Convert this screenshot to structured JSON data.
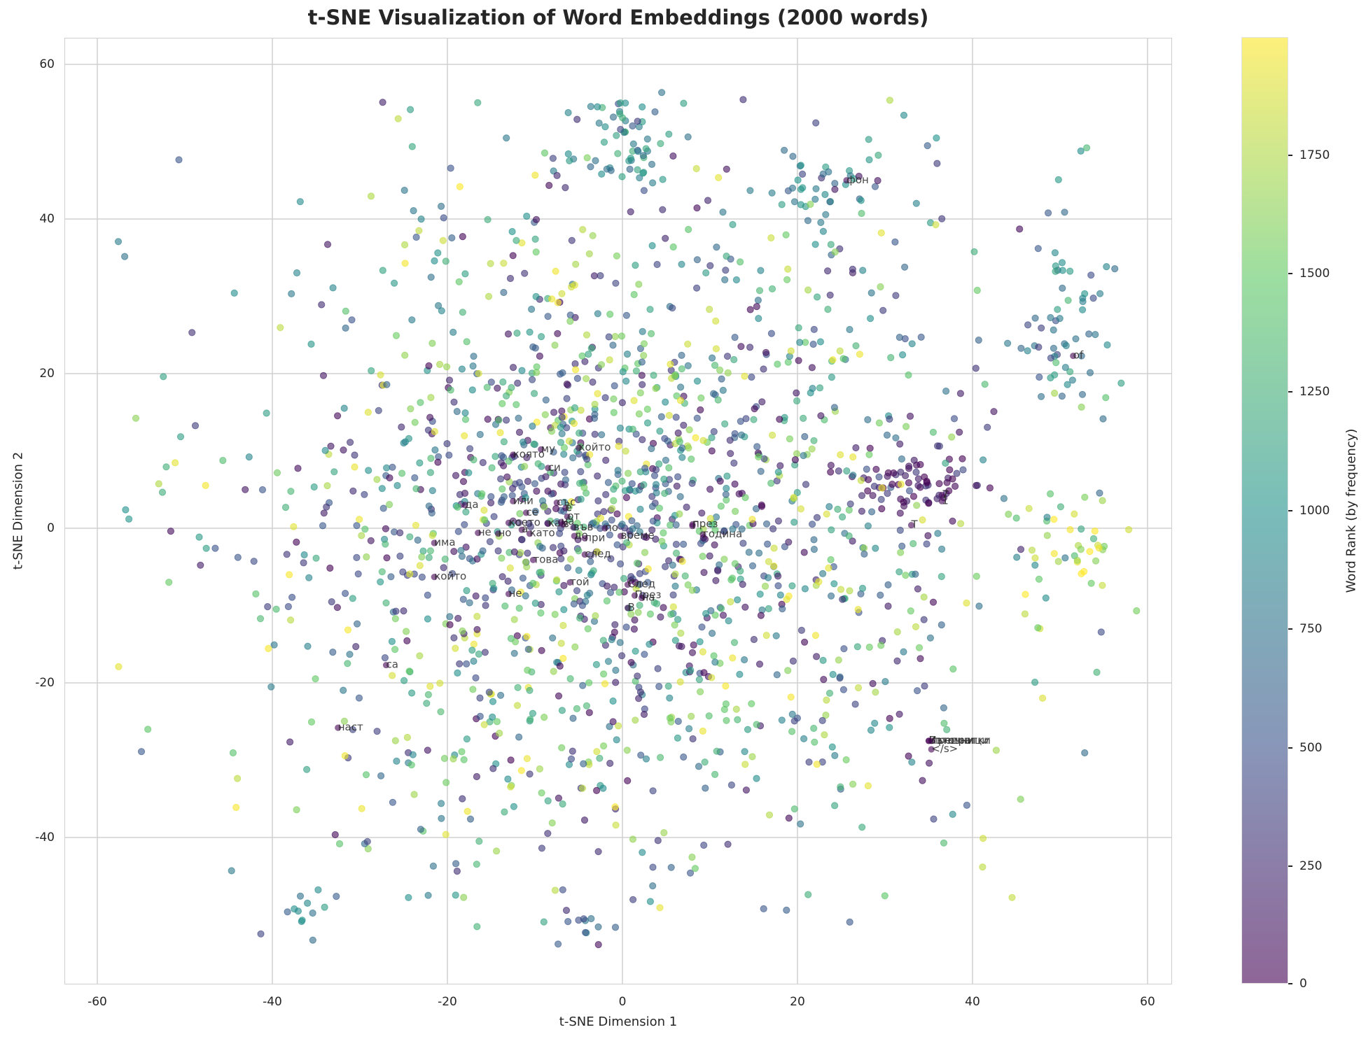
{
  "chart_data": {
    "type": "scatter",
    "title": "t-SNE Visualization of Word Embeddings (2000 words)",
    "xlabel": "t-SNE Dimension 1",
    "ylabel": "t-SNE Dimension 2",
    "xlim": [
      -63,
      63
    ],
    "ylim": [
      -59,
      63
    ],
    "xticks": [
      -60,
      -40,
      -20,
      0,
      20,
      40,
      60
    ],
    "yticks": [
      -40,
      -20,
      0,
      20,
      40,
      60
    ],
    "grid": true,
    "n_points": 2000,
    "colormap": "viridis",
    "alpha": 0.6,
    "colorbar": {
      "label": "Word Rank (by frequency)",
      "range": [
        0,
        1999
      ],
      "ticks": [
        0,
        250,
        500,
        750,
        1000,
        1250,
        1500,
        1750
      ]
    },
    "clusters": [
      {
        "cx": 0,
        "cy": 50,
        "sx": 3,
        "sy": 3,
        "n": 60,
        "rank_mean": 900
      },
      {
        "cx": 33,
        "cy": 6,
        "sx": 4,
        "sy": 2,
        "n": 70,
        "rank_mean": 60
      },
      {
        "cx": 50,
        "cy": 27,
        "sx": 3,
        "sy": 8,
        "n": 60,
        "rank_mean": 900
      },
      {
        "cx": 52,
        "cy": -3,
        "sx": 3,
        "sy": 3,
        "n": 35,
        "rank_mean": 1700
      },
      {
        "cx": 23,
        "cy": 44,
        "sx": 4,
        "sy": 4,
        "n": 40,
        "rank_mean": 800
      },
      {
        "cx": -8,
        "cy": 2,
        "sx": 10,
        "sy": 8,
        "n": 160,
        "rank_mean": 300
      },
      {
        "cx": -4,
        "cy": -51,
        "sx": 1.5,
        "sy": 1,
        "n": 10,
        "rank_mean": 600
      },
      {
        "cx": -35,
        "cy": -49,
        "sx": 2,
        "sy": 1.5,
        "n": 12,
        "rank_mean": 900
      }
    ],
    "labeled_points": [
      {
        "word": "която",
        "x": -12.5,
        "y": 9.5
      },
      {
        "word": "му",
        "x": -9.3,
        "y": 10.2
      },
      {
        "word": "си",
        "x": -8.5,
        "y": 7.8
      },
      {
        "word": "който",
        "x": -5,
        "y": 10.4
      },
      {
        "word": "да",
        "x": -18,
        "y": 3
      },
      {
        "word": "или",
        "x": -12.5,
        "y": 3.5
      },
      {
        "word": "се",
        "x": -11,
        "y": 2
      },
      {
        "word": "със",
        "x": -7.5,
        "y": 3.3
      },
      {
        "word": "е",
        "x": -6.5,
        "y": 2.6
      },
      {
        "word": "от",
        "x": -6.3,
        "y": 1.5
      },
      {
        "word": "което",
        "x": -13,
        "y": 0.7
      },
      {
        "word": "а",
        "x": -11.5,
        "y": -0.2
      },
      {
        "word": "като",
        "x": -10.6,
        "y": -0.7
      },
      {
        "word": "как",
        "x": -8.5,
        "y": 0.6
      },
      {
        "word": "на",
        "x": -7,
        "y": 0.8
      },
      {
        "word": "в",
        "x": -6.8,
        "y": 0.5
      },
      {
        "word": "във",
        "x": -5.6,
        "y": 0.1
      },
      {
        "word": "до",
        "x": -5.5,
        "y": -1.0
      },
      {
        "word": "не",
        "x": -16.5,
        "y": -0.6
      },
      {
        "word": "но",
        "x": -14.2,
        "y": -0.7
      },
      {
        "word": "по",
        "x": -2,
        "y": 0.0
      },
      {
        "word": "при",
        "x": -4.3,
        "y": -1.3
      },
      {
        "word": "време",
        "x": -0.2,
        "y": -1.0
      },
      {
        "word": "след",
        "x": -4.3,
        "y": -3.4
      },
      {
        "word": "това",
        "x": -10.2,
        "y": -4.1
      },
      {
        "word": "има",
        "x": -21.5,
        "y": -1.9
      },
      {
        "word": "който",
        "x": -21.5,
        "y": -6.3
      },
      {
        "word": "той",
        "x": -6,
        "y": -7.0
      },
      {
        "word": "не",
        "x": -13,
        "y": -8.5
      },
      {
        "word": "След",
        "x": 0.6,
        "y": -7.3
      },
      {
        "word": "През",
        "x": 1.4,
        "y": -8.7
      },
      {
        "word": "на",
        "x": 2.2,
        "y": -9.0
      },
      {
        "word": "В",
        "x": 0.6,
        "y": -10.3
      },
      {
        "word": "Г",
        "x": 8.0,
        "y": 0.3
      },
      {
        "word": "през",
        "x": 8.0,
        "y": 0.5
      },
      {
        "word": "година",
        "x": 9.2,
        "y": -0.8
      },
      {
        "word": "фон",
        "x": 25.6,
        "y": 45.0
      },
      {
        "word": "of",
        "x": 51.5,
        "y": 22.3
      },
      {
        "word": "7",
        "x": 36.5,
        "y": 4.3
      },
      {
        "word": "1",
        "x": 36.5,
        "y": 3.5
      },
      {
        "word": "Т",
        "x": 33,
        "y": 0.4
      },
      {
        "word": "Източници",
        "x": 35,
        "y": -27.5
      },
      {
        "word": "Външни",
        "x": 35,
        "y": -27.5
      },
      {
        "word": "препратки",
        "x": 35.3,
        "y": -27.5
      },
      {
        "word": "</s>",
        "x": 35.3,
        "y": -28.6
      },
      {
        "word": "са",
        "x": -27,
        "y": -17.7
      },
      {
        "word": "наст",
        "x": -32.5,
        "y": -25.8
      }
    ]
  },
  "text": {
    "title": "t-SNE Visualization of Word Embeddings (2000 words)",
    "xlabel": "t-SNE Dimension 1",
    "ylabel": "t-SNE Dimension 2",
    "cbar_label": "Word Rank (by frequency)",
    "xticks": [
      "-60",
      "-40",
      "-20",
      "0",
      "20",
      "40",
      "60"
    ],
    "yticks": [
      "60",
      "40",
      "20",
      "0",
      "-20",
      "-40"
    ],
    "cbar_ticks": [
      "1750",
      "1500",
      "1250",
      "1000",
      "750",
      "500",
      "250",
      "0"
    ]
  }
}
